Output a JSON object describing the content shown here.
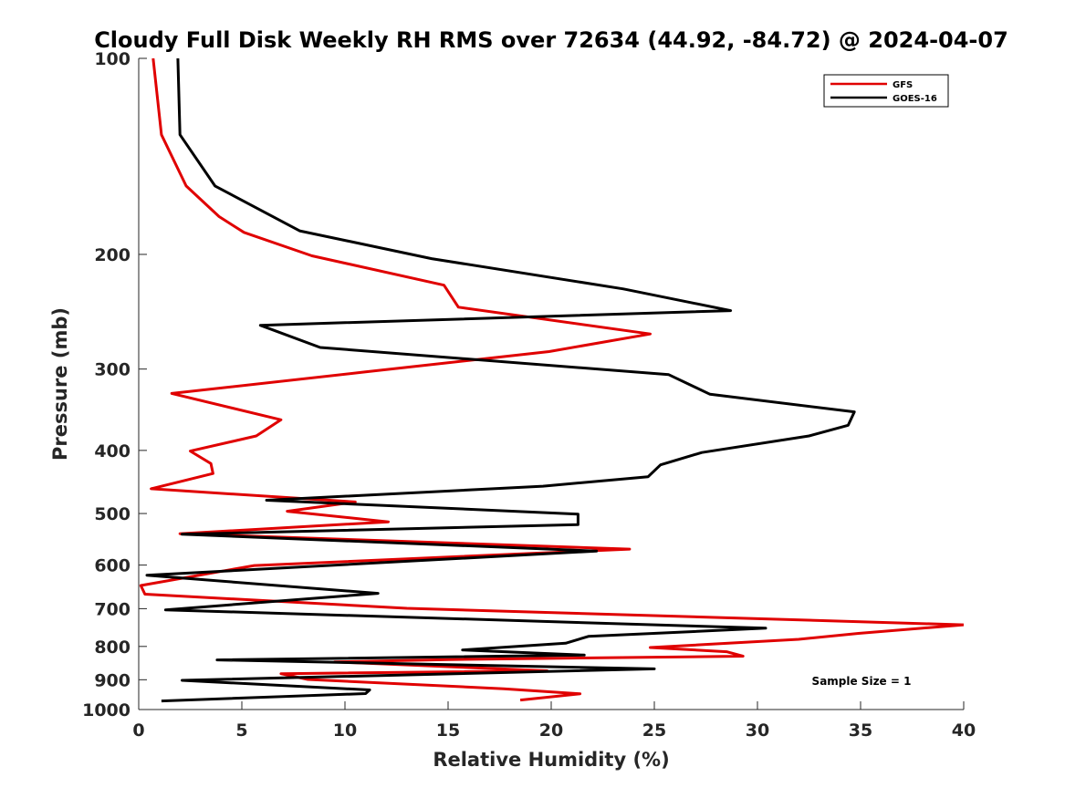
{
  "chart_data": {
    "type": "line",
    "title": "Cloudy Full Disk Weekly RH RMS over 72634 (44.92, -84.72) @ 2024-04-07",
    "xlabel": "Relative Humidity (%)",
    "ylabel": "Pressure (mb)",
    "xlim": [
      0,
      40
    ],
    "ylim": [
      100,
      1000
    ],
    "yscale": "log",
    "y_reversed": true,
    "xticks": [
      0,
      5,
      10,
      15,
      20,
      25,
      30,
      35,
      40
    ],
    "yticks": [
      100,
      200,
      300,
      400,
      500,
      600,
      700,
      800,
      900,
      1000
    ],
    "grid": false,
    "legend_position": "top-right",
    "annotation": "Sample Size = 1",
    "series": [
      {
        "name": "GFS",
        "color": "#e00000",
        "points": [
          [
            0.7,
            100
          ],
          [
            1.1,
            131
          ],
          [
            2.3,
            157
          ],
          [
            3.9,
            175
          ],
          [
            5.1,
            185
          ],
          [
            8.4,
            201
          ],
          [
            14.8,
            223
          ],
          [
            15.5,
            241
          ],
          [
            24.8,
            265
          ],
          [
            19.9,
            282
          ],
          [
            11.0,
            303
          ],
          [
            1.6,
            327
          ],
          [
            6.9,
            359
          ],
          [
            5.7,
            380
          ],
          [
            2.5,
            401
          ],
          [
            3.5,
            419
          ],
          [
            3.6,
            434
          ],
          [
            0.6,
            458
          ],
          [
            10.5,
            480
          ],
          [
            7.2,
            496
          ],
          [
            12.1,
            515
          ],
          [
            2.0,
            537
          ],
          [
            23.8,
            567
          ],
          [
            5.6,
            601
          ],
          [
            0.1,
            645
          ],
          [
            0.3,
            665
          ],
          [
            13.0,
            699
          ],
          [
            40.0,
            741
          ],
          [
            34.9,
            764
          ],
          [
            32.0,
            780
          ],
          [
            24.8,
            803
          ],
          [
            28.5,
            815
          ],
          [
            29.3,
            828
          ],
          [
            15.0,
            838
          ],
          [
            9.5,
            845
          ],
          [
            19.8,
            872
          ],
          [
            6.9,
            881
          ],
          [
            8.2,
            899
          ],
          [
            17.7,
            929
          ],
          [
            21.4,
            946
          ],
          [
            18.5,
            967
          ]
        ]
      },
      {
        "name": "GOES-16",
        "color": "#000000",
        "points": [
          [
            1.9,
            100
          ],
          [
            2.0,
            131
          ],
          [
            3.7,
            157
          ],
          [
            7.8,
            184
          ],
          [
            14.2,
            203
          ],
          [
            23.5,
            226
          ],
          [
            28.7,
            244
          ],
          [
            5.9,
            257
          ],
          [
            8.8,
            278
          ],
          [
            25.7,
            306
          ],
          [
            27.7,
            328
          ],
          [
            34.7,
            349
          ],
          [
            34.4,
            366
          ],
          [
            32.5,
            380
          ],
          [
            27.3,
            403
          ],
          [
            25.3,
            421
          ],
          [
            24.7,
            439
          ],
          [
            19.6,
            454
          ],
          [
            6.2,
            477
          ],
          [
            21.3,
            501
          ],
          [
            21.3,
            520
          ],
          [
            2.1,
            538
          ],
          [
            22.2,
            571
          ],
          [
            0.4,
            622
          ],
          [
            11.6,
            663
          ],
          [
            1.3,
            703
          ],
          [
            30.4,
            750
          ],
          [
            21.8,
            772
          ],
          [
            20.7,
            791
          ],
          [
            15.7,
            810
          ],
          [
            21.6,
            825
          ],
          [
            3.8,
            839
          ],
          [
            25.0,
            866
          ],
          [
            2.1,
            902
          ],
          [
            11.2,
            933
          ],
          [
            11.0,
            945
          ],
          [
            1.1,
            970
          ]
        ]
      }
    ]
  }
}
